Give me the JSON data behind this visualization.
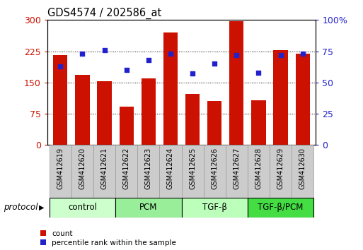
{
  "title": "GDS4574 / 202586_at",
  "samples": [
    "GSM412619",
    "GSM412620",
    "GSM412621",
    "GSM412622",
    "GSM412623",
    "GSM412624",
    "GSM412625",
    "GSM412626",
    "GSM412627",
    "GSM412628",
    "GSM412629",
    "GSM412630"
  ],
  "counts": [
    215,
    168,
    153,
    92,
    160,
    270,
    122,
    105,
    298,
    108,
    228,
    220
  ],
  "percentile": [
    63,
    73,
    76,
    60,
    68,
    73,
    57,
    65,
    72,
    58,
    72,
    73
  ],
  "groups": [
    {
      "label": "control",
      "start": 0,
      "end": 3,
      "color": "#ccffcc"
    },
    {
      "label": "PCM",
      "start": 3,
      "end": 6,
      "color": "#99ee99"
    },
    {
      "label": "TGF-β",
      "start": 6,
      "end": 9,
      "color": "#bbffbb"
    },
    {
      "label": "TGF-β/PCM",
      "start": 9,
      "end": 12,
      "color": "#44dd44"
    }
  ],
  "bar_color": "#cc1100",
  "dot_color": "#2222cc",
  "left_axis_color": "#cc1100",
  "right_axis_color": "#2222cc",
  "left_ylim": [
    0,
    300
  ],
  "right_ylim": [
    0,
    100
  ],
  "left_yticks": [
    0,
    75,
    150,
    225,
    300
  ],
  "right_yticks": [
    0,
    25,
    50,
    75,
    100
  ],
  "right_yticklabels": [
    "0",
    "25",
    "50",
    "75",
    "100%"
  ],
  "figsize": [
    5.13,
    3.54
  ],
  "dpi": 100,
  "legend_items": [
    {
      "label": "count",
      "color": "#cc1100"
    },
    {
      "label": "percentile rank within the sample",
      "color": "#2222cc"
    }
  ],
  "protocol_label": "protocol",
  "bar_width": 0.65,
  "tick_label_bg": "#cccccc",
  "sample_label_fontsize": 7,
  "group_fontsize": 8.5,
  "title_fontsize": 10.5
}
